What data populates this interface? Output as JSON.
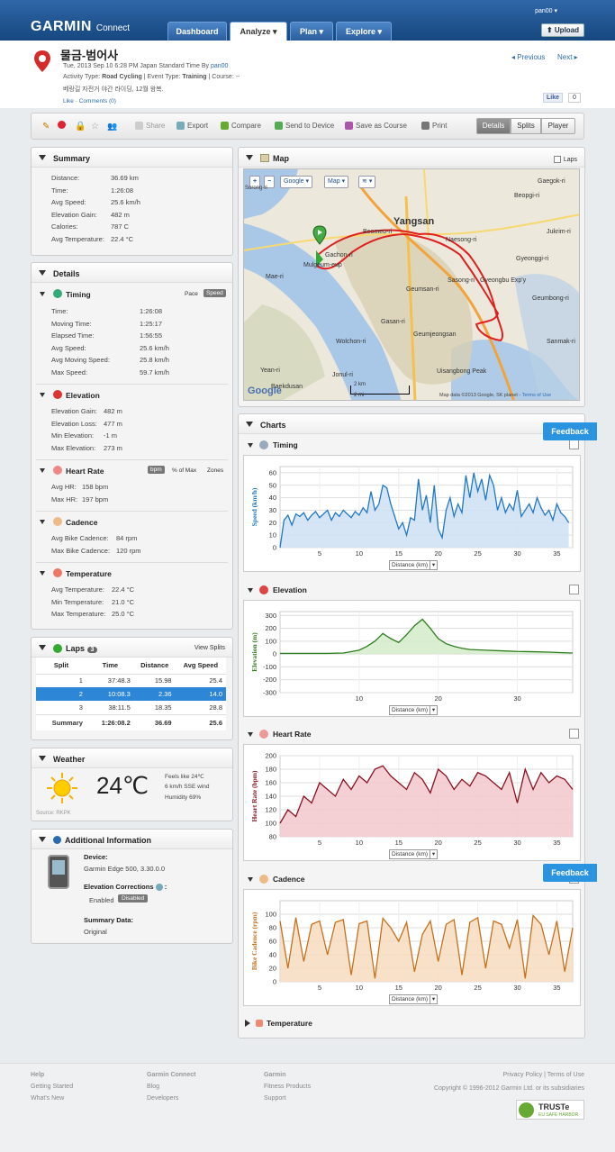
{
  "nav": {
    "logo": "GARMIN",
    "logo_sub": "Connect",
    "tabs": [
      "Dashboard",
      "Analyze",
      "Plan",
      "Explore"
    ],
    "user": "pan00",
    "upload": "Upload"
  },
  "activity": {
    "title": "물금-범어사",
    "date_line": "Tue, 2013 Sep 10 6:28 PM Japan Standard Time By",
    "author": "pan00",
    "type_line_prefix": "Activity Type:",
    "type": "Road Cycling",
    "event_prefix": "| Event Type:",
    "event": "Training",
    "course": "| Course: --",
    "description": "베랑길 자전거 야간 라이딩, 12월 왕복.",
    "like": "Like",
    "comments": "Comments (0)",
    "prev": "Previous",
    "next": "Next",
    "fb_like": "Like",
    "fb_count": "0"
  },
  "toolbar": {
    "share": "Share",
    "export": "Export",
    "compare": "Compare",
    "send": "Send to Device",
    "save_course": "Save as Course",
    "print": "Print",
    "views": [
      "Details",
      "Splits",
      "Player"
    ]
  },
  "summary": {
    "title": "Summary",
    "rows": [
      [
        "Distance:",
        "36.69 km"
      ],
      [
        "Time:",
        "1:26:08"
      ],
      [
        "Avg Speed:",
        "25.6 km/h"
      ],
      [
        "Elevation Gain:",
        "482 m"
      ],
      [
        "Calories:",
        "787 C"
      ],
      [
        "Avg Temperature:",
        "22.4 °C"
      ]
    ]
  },
  "details": {
    "title": "Details",
    "timing": {
      "title": "Timing",
      "pace": "Pace",
      "speed": "Speed",
      "rows": [
        [
          "Time:",
          "1:26:08"
        ],
        [
          "Moving Time:",
          "1:25:17"
        ],
        [
          "Elapsed Time:",
          "1:56:55"
        ],
        [
          "Avg Speed:",
          "25.6 km/h"
        ],
        [
          "Avg Moving Speed:",
          "25.8 km/h"
        ],
        [
          "Max Speed:",
          "59.7 km/h"
        ]
      ]
    },
    "elevation": {
      "title": "Elevation",
      "rows": [
        [
          "Elevation Gain:",
          "482 m"
        ],
        [
          "Elevation Loss:",
          "477 m"
        ],
        [
          "Min Elevation:",
          "-1 m"
        ],
        [
          "Max Elevation:",
          "273 m"
        ]
      ]
    },
    "heart": {
      "title": "Heart Rate",
      "bpm": "bpm",
      "pct": "% of Max",
      "zones": "Zones",
      "rows": [
        [
          "Avg HR:",
          "158 bpm"
        ],
        [
          "Max HR:",
          "197 bpm"
        ]
      ]
    },
    "cadence": {
      "title": "Cadence",
      "rows": [
        [
          "Avg Bike Cadence:",
          "84 rpm"
        ],
        [
          "Max Bike Cadence:",
          "120 rpm"
        ]
      ]
    },
    "temperature": {
      "title": "Temperature",
      "rows": [
        [
          "Avg Temperature:",
          "22.4 °C"
        ],
        [
          "Min Temperature:",
          "21.0 °C"
        ],
        [
          "Max Temperature:",
          "25.0 °C"
        ]
      ]
    }
  },
  "laps": {
    "title": "Laps",
    "count": "3",
    "view_splits": "View Splits",
    "headers": [
      "Split",
      "Time",
      "Distance",
      "Avg Speed"
    ],
    "rows": [
      [
        "1",
        "37:48.3",
        "15.98",
        "25.4"
      ],
      [
        "2",
        "10:08.3",
        "2.36",
        "14.0"
      ],
      [
        "3",
        "38:11.5",
        "18.35",
        "28.8"
      ]
    ],
    "summary": [
      "Summary",
      "1:26:08.2",
      "36.69",
      "25.6"
    ]
  },
  "weather": {
    "title": "Weather",
    "temp": "24℃",
    "feels": "Feels like 24℃",
    "wind": "6 km/h SSE wind",
    "humidity": "Humidity 69%",
    "source": "Source: RKPK"
  },
  "additional": {
    "title": "Additional Information",
    "device_label": "Device:",
    "device": "Garmin Edge 500",
    "device_ver": ", 3.30.0.0",
    "elev_corr": "Elevation Corrections",
    "enabled": "Enabled",
    "disabled": "Disabled",
    "summary_data": "Summary Data:",
    "original": "Original"
  },
  "map": {
    "title": "Map",
    "laps": "Laps",
    "google": "Google",
    "maptype": "Map",
    "labels": [
      "Yangsan",
      "Beomeo-ri",
      "Naesong-ri",
      "Sasong-ri",
      "Geumsan-ri",
      "Gasan-ri",
      "Wolchon-ri",
      "Geumjeongsan",
      "Uisangbong Peak",
      "Jonul-ri",
      "Yean-ri",
      "Mae-ri",
      "Mulgeum-eup",
      "Baekdusan",
      "Gaegok-ri",
      "Beopgi-ri",
      "Gyeonggi-ri",
      "Jukrim-ri",
      "Gachon-ri",
      "Sanmak-ri",
      "Geumbong-ri",
      "Gyeongbu Exp'y",
      "Sorong-ri"
    ],
    "scale_km": "2 km",
    "scale_mi": "2 mi",
    "copyright": "Map data ©2013 Google, SK planet -",
    "terms": "Terms of Use"
  },
  "charts": {
    "title": "Charts",
    "feedback": "Feedback",
    "distance_label": "Distance (km)",
    "temperature": "Temperature"
  },
  "chart_data": [
    {
      "type": "area",
      "title": "Timing",
      "ylabel": "Speed (km/h)",
      "xlabel": "Distance (km)",
      "ylim": [
        0,
        65
      ],
      "xlim": [
        0,
        37
      ],
      "yticks": [
        0,
        10,
        20,
        30,
        40,
        50,
        60
      ],
      "xticks": [
        5,
        10,
        15,
        20,
        25,
        30,
        35
      ],
      "x": [
        0,
        0.5,
        1,
        1.5,
        2,
        2.5,
        3,
        3.5,
        4,
        4.5,
        5,
        5.5,
        6,
        6.5,
        7,
        7.5,
        8,
        8.5,
        9,
        9.5,
        10,
        10.5,
        11,
        11.5,
        12,
        12.5,
        13,
        13.5,
        14,
        14.5,
        15,
        15.5,
        16,
        16.5,
        17,
        17.5,
        18,
        18.5,
        19,
        19.5,
        20,
        20.5,
        21,
        21.5,
        22,
        22.5,
        23,
        23.5,
        24,
        24.5,
        25,
        25.5,
        26,
        26.5,
        27,
        27.5,
        28,
        28.5,
        29,
        29.5,
        30,
        30.5,
        31,
        31.5,
        32,
        32.5,
        33,
        33.5,
        34,
        34.5,
        35,
        35.5,
        36,
        36.5
      ],
      "y": [
        0,
        22,
        26,
        18,
        27,
        25,
        28,
        22,
        26,
        29,
        24,
        27,
        30,
        22,
        28,
        25,
        30,
        27,
        24,
        29,
        26,
        32,
        28,
        45,
        30,
        35,
        50,
        48,
        35,
        25,
        15,
        20,
        10,
        24,
        22,
        55,
        30,
        42,
        20,
        50,
        15,
        8,
        30,
        40,
        25,
        35,
        28,
        58,
        40,
        60,
        45,
        55,
        38,
        58,
        50,
        30,
        40,
        28,
        35,
        30,
        46,
        25,
        30,
        35,
        28,
        40,
        32,
        26,
        30,
        22,
        35,
        28,
        25,
        20
      ]
    },
    {
      "type": "area",
      "title": "Elevation",
      "ylabel": "Elevation (m)",
      "xlabel": "Distance (km)",
      "ylim": [
        -300,
        330
      ],
      "xlim": [
        0,
        37
      ],
      "yticks": [
        -300,
        -200,
        -100,
        0,
        100,
        200,
        300
      ],
      "xticks": [
        10,
        20,
        30
      ],
      "x": [
        0,
        2,
        4,
        6,
        8,
        10,
        11,
        12,
        13,
        14,
        15,
        16,
        17,
        18,
        19,
        20,
        21,
        22,
        23,
        24,
        26,
        28,
        30,
        32,
        34,
        36,
        37
      ],
      "y": [
        5,
        5,
        5,
        5,
        8,
        30,
        60,
        100,
        160,
        120,
        90,
        150,
        220,
        270,
        200,
        120,
        80,
        60,
        45,
        35,
        30,
        25,
        20,
        18,
        15,
        10,
        8
      ]
    },
    {
      "type": "area",
      "title": "Heart Rate",
      "ylabel": "Heart Rate (bpm)",
      "xlabel": "Distance (km)",
      "ylim": [
        80,
        200
      ],
      "xlim": [
        0,
        37
      ],
      "yticks": [
        80,
        100,
        120,
        140,
        160,
        180,
        200
      ],
      "xticks": [
        5,
        10,
        15,
        20,
        25,
        30,
        35
      ],
      "x": [
        0,
        1,
        2,
        3,
        4,
        5,
        6,
        7,
        8,
        9,
        10,
        11,
        12,
        13,
        14,
        15,
        16,
        17,
        18,
        19,
        20,
        21,
        22,
        23,
        24,
        25,
        26,
        27,
        28,
        29,
        30,
        31,
        32,
        33,
        34,
        35,
        36,
        37
      ],
      "y": [
        100,
        120,
        110,
        140,
        130,
        160,
        150,
        140,
        165,
        150,
        170,
        160,
        180,
        185,
        170,
        160,
        150,
        175,
        165,
        145,
        180,
        170,
        150,
        165,
        155,
        175,
        170,
        160,
        150,
        175,
        130,
        180,
        150,
        175,
        160,
        170,
        165,
        150
      ]
    },
    {
      "type": "area",
      "title": "Cadence",
      "ylabel": "Bike Cadence (rpm)",
      "xlabel": "Distance (km)",
      "ylim": [
        0,
        120
      ],
      "xlim": [
        0,
        37
      ],
      "yticks": [
        0,
        20,
        40,
        60,
        80,
        100
      ],
      "xticks": [
        5,
        10,
        15,
        20,
        25,
        30,
        35
      ],
      "x": [
        0,
        1,
        2,
        3,
        4,
        5,
        6,
        7,
        8,
        9,
        10,
        11,
        12,
        13,
        14,
        15,
        16,
        17,
        18,
        19,
        20,
        21,
        22,
        23,
        24,
        25,
        26,
        27,
        28,
        29,
        30,
        31,
        32,
        33,
        34,
        35,
        36,
        37
      ],
      "y": [
        90,
        20,
        95,
        30,
        85,
        90,
        40,
        88,
        92,
        10,
        86,
        90,
        5,
        94,
        80,
        60,
        88,
        15,
        70,
        90,
        30,
        85,
        92,
        10,
        88,
        95,
        20,
        90,
        85,
        50,
        92,
        5,
        98,
        85,
        40,
        90,
        15,
        80
      ]
    }
  ],
  "footer": {
    "cols": [
      {
        "head": "Help",
        "items": [
          "Getting Started",
          "What's New"
        ]
      },
      {
        "head": "Garmin Connect",
        "items": [
          "Blog",
          "Developers"
        ]
      },
      {
        "head": "Garmin",
        "items": [
          "Fitness Products",
          "Support"
        ]
      }
    ],
    "links": "Privacy Policy | Terms of Use",
    "copyright": "Copyright © 1996-2012 Garmin Ltd. or its subsidiaries",
    "truste": "TRUSTe",
    "truste_sub": "EU SAFE HARBOR"
  },
  "colors": {
    "blue_line": "#1f78c8",
    "green_line": "#2e7d1e",
    "red_line": "#8b1020",
    "orange_line": "#c8701a",
    "route": "#e02020"
  }
}
